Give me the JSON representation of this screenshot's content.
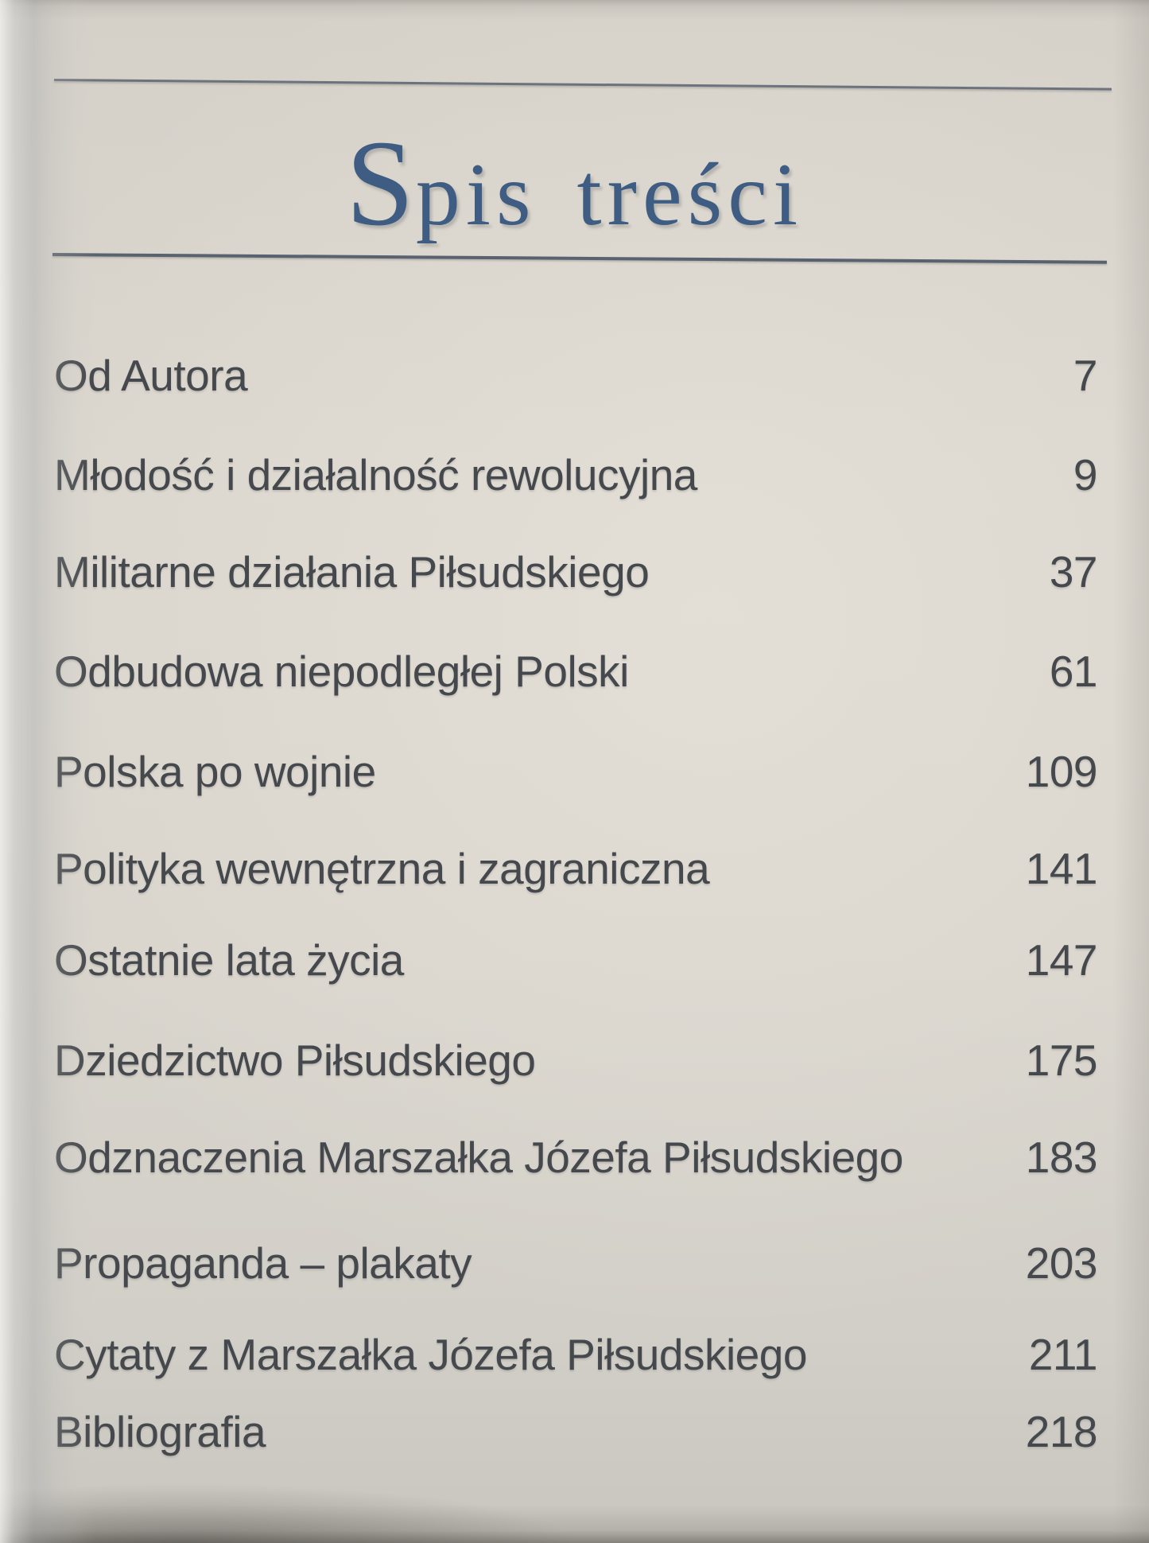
{
  "page": {
    "title": "Spis treści",
    "toc": [
      {
        "label": "Od Autora",
        "page": "7"
      },
      {
        "label": "Młodość i działalność rewolucyjna",
        "page": "9"
      },
      {
        "label": "Militarne działania Piłsudskiego",
        "page": "37"
      },
      {
        "label": "Odbudowa niepodległej Polski",
        "page": "61"
      },
      {
        "label": "Polska po wojnie",
        "page": "109"
      },
      {
        "label": "Polityka wewnętrzna i zagraniczna",
        "page": "141"
      },
      {
        "label": "Ostatnie lata życia",
        "page": "147"
      },
      {
        "label": "Dziedzictwo Piłsudskiego",
        "page": "175"
      },
      {
        "label": "Odznaczenia Marszałka Józefa Piłsudskiego",
        "page": "183"
      },
      {
        "label": "Propaganda – plakaty",
        "page": "203"
      },
      {
        "label": "Cytaty z Marszałka Józefa Piłsudskiego",
        "page": "211"
      },
      {
        "label": "Bibliografia",
        "page": "218"
      }
    ],
    "colors": {
      "paper": "#d9d5cd",
      "title_blue": "#3f5d82",
      "rule": "#5e6876",
      "text": "#45484c"
    }
  }
}
